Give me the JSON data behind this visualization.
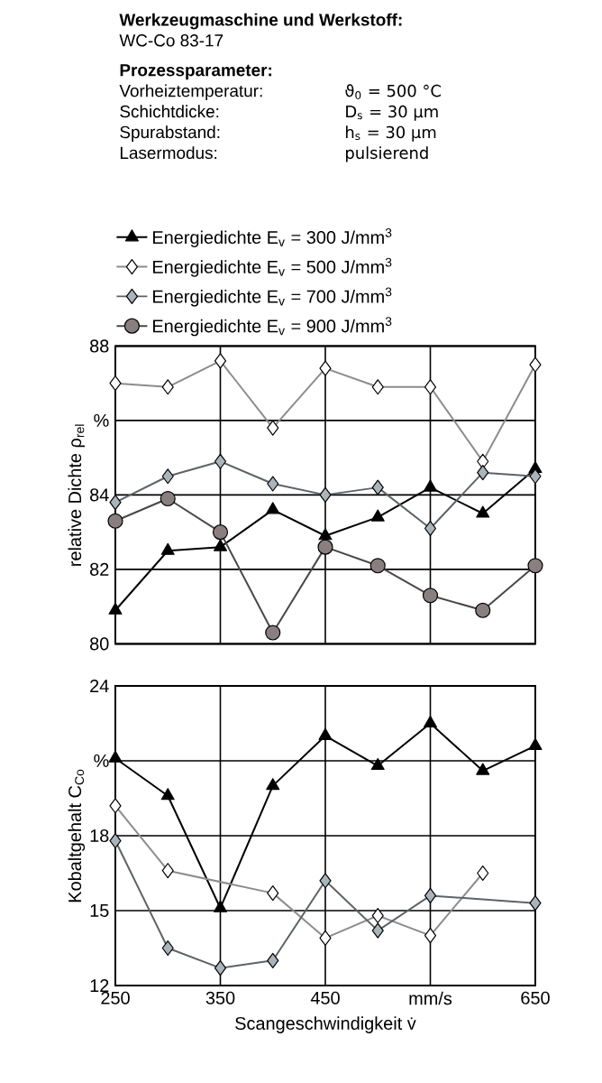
{
  "chart_data": [
    {
      "type": "line",
      "ylabel": "relative Dichte ρ$_{rel}$",
      "annotations": [
        "Werkzeugmaschine und Werkstoff:",
        "WC-Co 83-17",
        "Prozessparameter:",
        "Vorheiztemperatur:",
        "ϑ$_{0}$ = 500 °C",
        "Schichtdicke:",
        "D$_{s}$ =   30 µm",
        "Spurabstand:",
        "h$_{s}$ =   30 µm",
        "Lasermodus:",
        "pulsierend"
      ],
      "x": [
        250,
        300,
        350,
        400,
        450,
        500,
        550,
        600,
        650
      ],
      "series": [
        {
          "name": "Energiedichte E$_{v}$ = 300 J/mm$^{3}$",
          "color": "#000000",
          "marker": "triangle",
          "values": [
            80.9,
            82.5,
            82.6,
            83.6,
            82.9,
            83.4,
            84.2,
            83.5,
            84.7
          ]
        },
        {
          "name": "Energiedichte E$_{v}$ = 500 J/mm$^{3}$",
          "color": "#ffffff",
          "marker": "diamond",
          "values": [
            87.0,
            86.9,
            87.6,
            85.8,
            87.4,
            86.9,
            86.9,
            84.9,
            87.5
          ]
        },
        {
          "name": "Energiedichte E$_{v}$ = 700 J/mm$^{3}$",
          "color": "#a9b4bb",
          "marker": "diamond",
          "values": [
            83.8,
            84.5,
            84.9,
            84.3,
            84.0,
            84.2,
            83.1,
            84.6,
            84.5
          ]
        },
        {
          "name": "Energiedichte E$_{v}$ = 900 J/mm$^{3}$",
          "color": "#8a7f80",
          "marker": "circle",
          "values": [
            83.3,
            83.9,
            83.0,
            80.3,
            82.6,
            82.1,
            81.3,
            80.9,
            82.1
          ]
        }
      ],
      "xlim": [
        250,
        650
      ],
      "xticks": [
        250,
        350,
        450,
        550,
        650
      ],
      "ylim": [
        80,
        88
      ],
      "yticks": [
        80,
        82,
        84,
        {
          "value": 86,
          "label": "%"
        },
        88
      ],
      "grid": true,
      "legend": "top",
      "tick_labels": "y"
    },
    {
      "type": "line",
      "xlabel": "Scangeschwindigkeit v̇",
      "ylabel": "Kobaltgehalt C$_{Co}$",
      "x": [
        250,
        300,
        350,
        400,
        450,
        500,
        550,
        600,
        650
      ],
      "series": [
        {
          "color": "#000000",
          "marker": "triangle",
          "values": [
            21.1,
            19.6,
            15.1,
            20.0,
            22.0,
            20.8,
            22.5,
            20.6,
            21.6
          ]
        },
        {
          "color": "#ffffff",
          "marker": "diamond",
          "values": [
            19.2,
            16.6,
            null,
            15.7,
            13.9,
            14.8,
            14.0,
            16.5,
            null
          ]
        },
        {
          "color": "#a9b4bb",
          "marker": "diamond",
          "x": [
            250,
            300,
            350,
            400,
            450,
            500,
            550,
            650
          ],
          "values": [
            17.8,
            13.5,
            12.7,
            13.0,
            16.2,
            14.2,
            15.6,
            15.3
          ]
        }
      ],
      "xlim": [
        250,
        650
      ],
      "xticks": [
        250,
        350,
        450,
        {
          "value": 550,
          "label": "mm/s"
        },
        650
      ],
      "ylim": [
        12,
        24
      ],
      "yticks": [
        12,
        15,
        18,
        {
          "value": 21,
          "label": "%"
        },
        24
      ],
      "grid": true
    }
  ]
}
